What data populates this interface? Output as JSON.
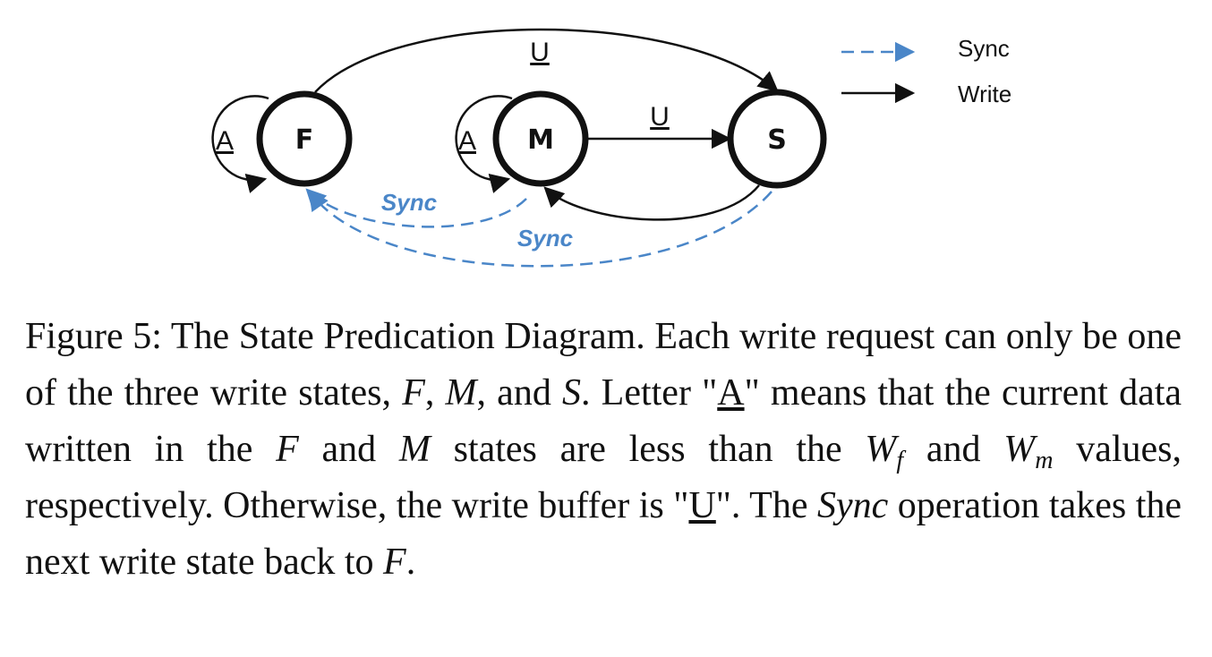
{
  "diagram": {
    "states": {
      "f": "F",
      "m": "M",
      "s": "S"
    },
    "self_loops": {
      "f": "A",
      "m": "A"
    },
    "edges": {
      "f_to_s": "U",
      "m_to_s": "U"
    },
    "sync_labels": {
      "m_to_f": "Sync",
      "s_to_f": "Sync"
    },
    "legend": {
      "sync": "Sync",
      "write": "Write"
    },
    "colors": {
      "sync": "#4a86c8",
      "write": "#111111"
    }
  },
  "caption": {
    "label": "Figure 5:",
    "t1": "The State Predication Diagram. Each write request can only be one of the three write states,",
    "v_f": "F",
    "t2": ",",
    "v_m": "M",
    "t3": ", and",
    "v_s": "S",
    "t4": ". Letter \"",
    "u_a": "A",
    "t5": "\" means that the current data written in the",
    "v_f2": "F",
    "t6": "and",
    "v_m2": "M",
    "t7": "states are less than the",
    "w_base": "W",
    "w_sub_f": "f",
    "t8": "and",
    "w_base2": "W",
    "w_sub_m": "m",
    "t9": "values, respectively. Otherwise, the write buffer is \"",
    "u_u": "U",
    "t10": "\". The",
    "v_sync": "Sync",
    "t11": "operation takes the next write state back to",
    "v_f3": "F",
    "t12": "."
  }
}
